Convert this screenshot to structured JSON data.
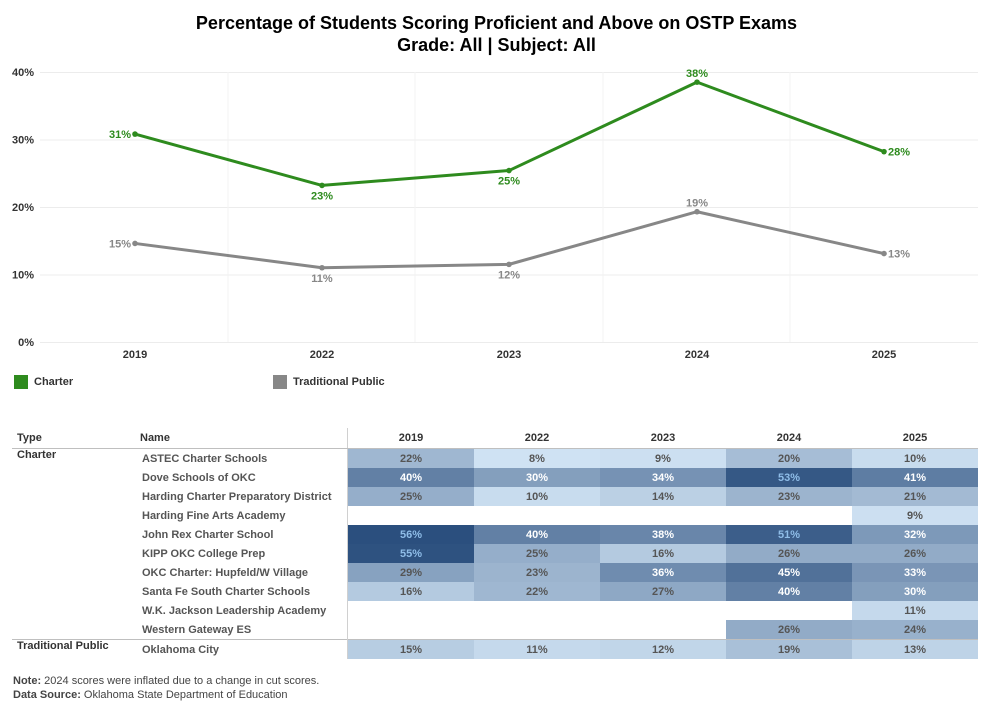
{
  "title_line1": "Percentage of Students Scoring Proficient and Above on OSTP Exams",
  "title_line2": "Grade: All | Subject: All",
  "colors": {
    "charter": "#2e8b1e",
    "traditional": "#878787",
    "heat_low": "#cfe2f3",
    "heat_high": "#2b4f7e"
  },
  "chart_data": {
    "type": "line",
    "title": "Percentage of Students Scoring Proficient and Above on OSTP Exams",
    "subtitle": "Grade: All | Subject: All",
    "categories": [
      "2019",
      "2022",
      "2023",
      "2024",
      "2025"
    ],
    "ylim": [
      0,
      40
    ],
    "yticks": [
      "0%",
      "10%",
      "20%",
      "30%",
      "40%"
    ],
    "grid": true,
    "series": [
      {
        "name": "Charter",
        "values": [
          30.8,
          23.2,
          25.4,
          38.5,
          28.2
        ],
        "labels": [
          "31%",
          "23%",
          "25%",
          "38%",
          "28%"
        ]
      },
      {
        "name": "Traditional Public",
        "values": [
          14.6,
          11.0,
          11.5,
          19.3,
          13.1
        ],
        "labels": [
          "15%",
          "11%",
          "12%",
          "19%",
          "13%"
        ]
      }
    ]
  },
  "legend": {
    "charter": "Charter",
    "traditional": "Traditional Public"
  },
  "table": {
    "headers": {
      "type": "Type",
      "name": "Name"
    },
    "years": [
      "2019",
      "2022",
      "2023",
      "2024",
      "2025"
    ],
    "groups": [
      {
        "type": "Charter",
        "rows": [
          {
            "name": "ASTEC Charter Schools",
            "cells": [
              "22%",
              "8%",
              "9%",
              "20%",
              "10%"
            ]
          },
          {
            "name": "Dove Schools of OKC",
            "cells": [
              "40%",
              "30%",
              "34%",
              "53%",
              "41%"
            ]
          },
          {
            "name": "Harding Charter Preparatory District",
            "cells": [
              "25%",
              "10%",
              "14%",
              "23%",
              "21%"
            ]
          },
          {
            "name": "Harding Fine Arts Academy",
            "cells": [
              "",
              "",
              "",
              "",
              "9%"
            ]
          },
          {
            "name": "John Rex Charter School",
            "cells": [
              "56%",
              "40%",
              "38%",
              "51%",
              "32%"
            ]
          },
          {
            "name": "KIPP OKC College Prep",
            "cells": [
              "55%",
              "25%",
              "16%",
              "26%",
              "26%"
            ]
          },
          {
            "name": "OKC Charter: Hupfeld/W Village",
            "cells": [
              "29%",
              "23%",
              "36%",
              "45%",
              "33%"
            ]
          },
          {
            "name": "Santa Fe South Charter Schools",
            "cells": [
              "16%",
              "22%",
              "27%",
              "40%",
              "30%"
            ]
          },
          {
            "name": "W.K. Jackson Leadership Academy",
            "cells": [
              "",
              "",
              "",
              "",
              "11%"
            ]
          },
          {
            "name": "Western Gateway ES",
            "cells": [
              "",
              "",
              "",
              "26%",
              "24%"
            ]
          }
        ]
      },
      {
        "type": "Traditional Public",
        "rows": [
          {
            "name": "Oklahoma City",
            "cells": [
              "15%",
              "11%",
              "12%",
              "19%",
              "13%"
            ]
          }
        ]
      }
    ]
  },
  "notes": {
    "note_label": "Note:",
    "note_text": " 2024 scores were inflated due to a change in cut scores.",
    "source_label": "Data Source:",
    "source_text": " Oklahoma State Department of Education"
  }
}
